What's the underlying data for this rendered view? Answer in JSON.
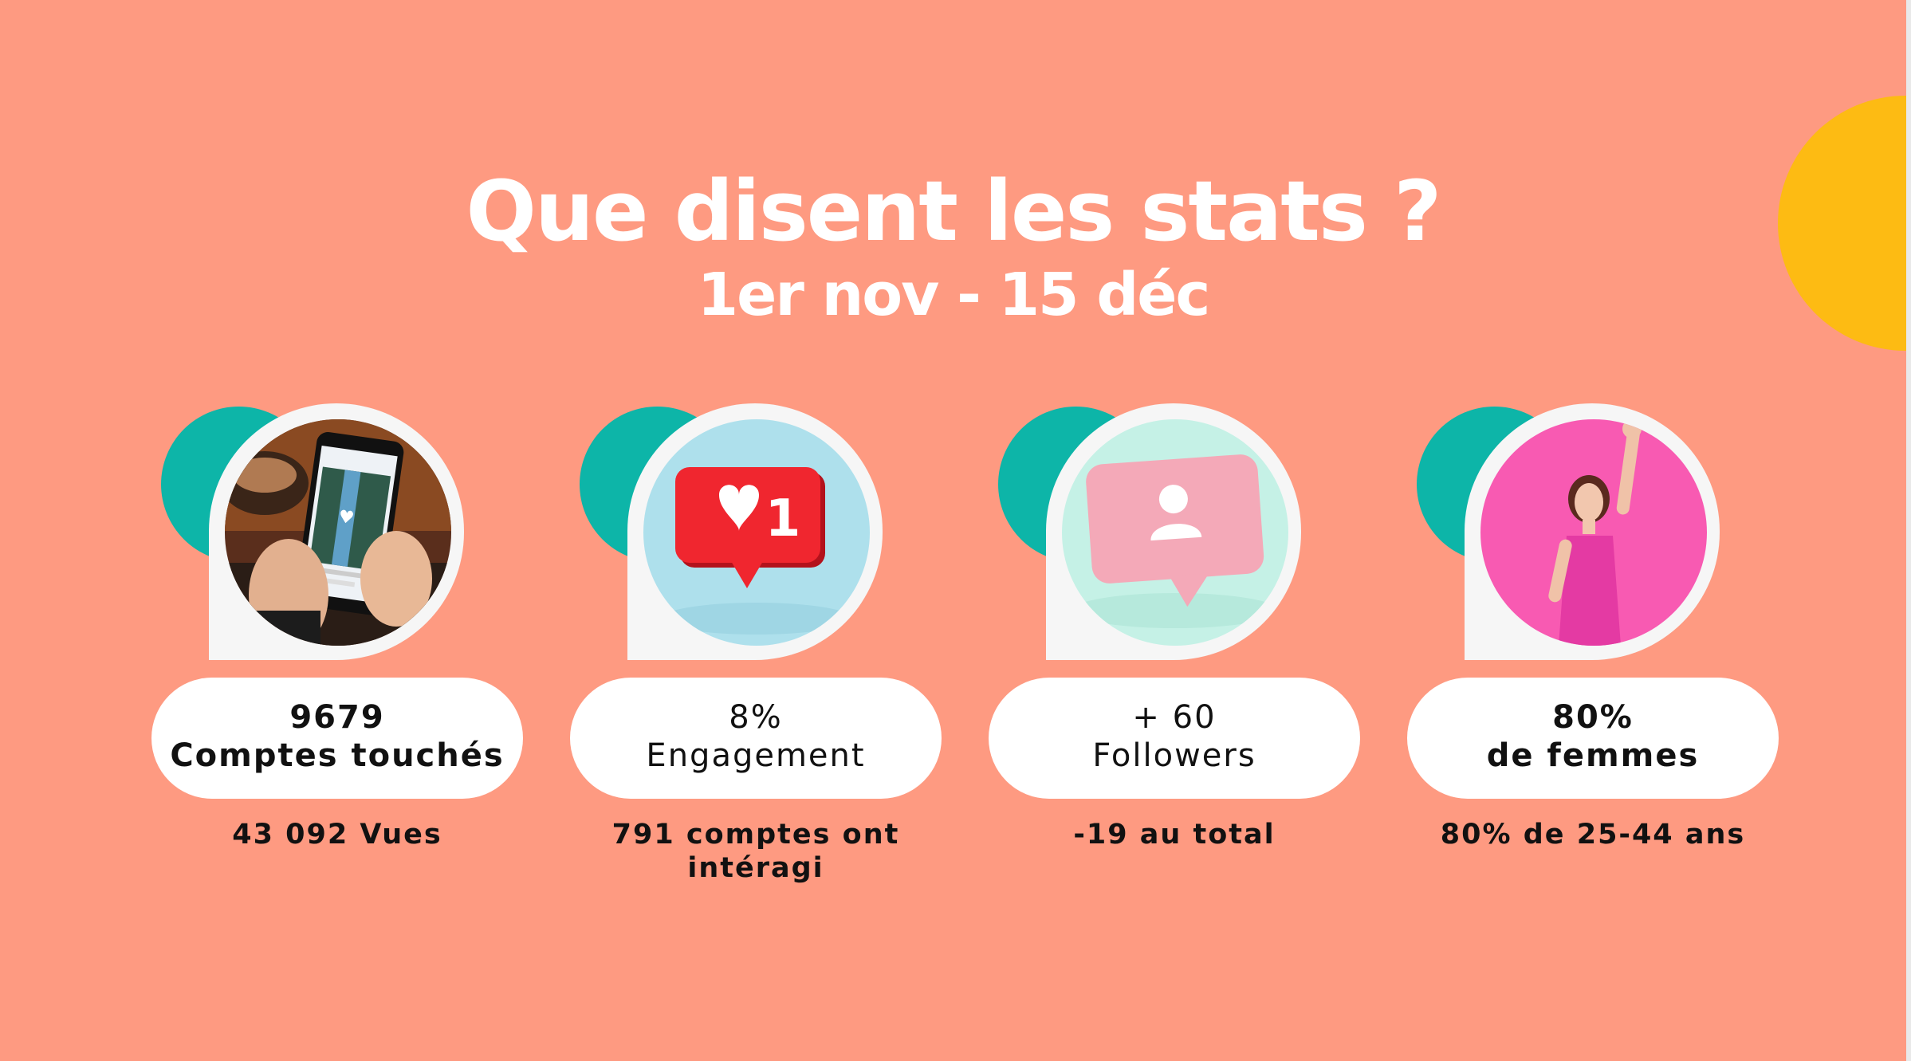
{
  "slide": {
    "title": "Que disent les stats ?",
    "subtitle": "1er nov - 15 déc"
  },
  "colors": {
    "background": "#fe9a81",
    "teal": "#0db5a8",
    "yellow": "#fdbb13",
    "pill": "#ffffff"
  },
  "cards": [
    {
      "icon": "phone-photo",
      "value": "9679",
      "label": "Comptes touchés",
      "note": "43 092 Vues"
    },
    {
      "icon": "heart-like-notification",
      "badge": "1",
      "value": "8%",
      "label": "Engagement",
      "note": "791 comptes ont intéragi"
    },
    {
      "icon": "user-follow-bubble",
      "value": "+ 60",
      "label": "Followers",
      "note": "-19 au total"
    },
    {
      "icon": "woman-cheering-photo",
      "value": "80%",
      "label": "de femmes",
      "note": "80% de 25-44 ans"
    }
  ]
}
